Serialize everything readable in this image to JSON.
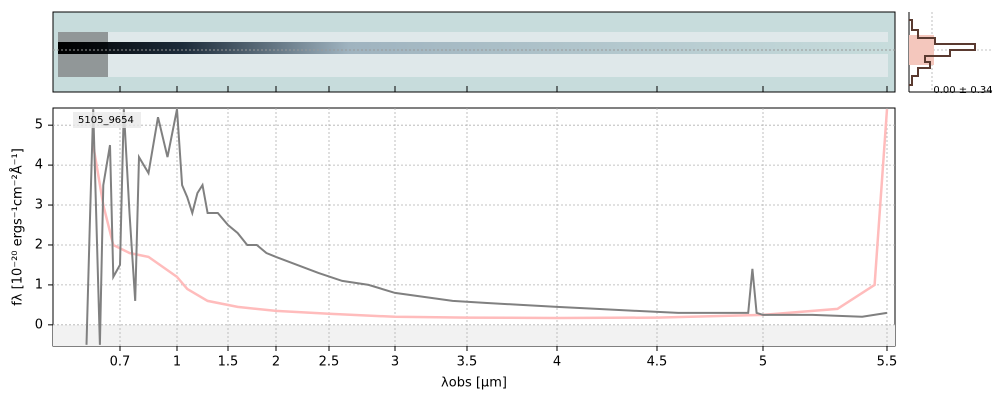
{
  "chart_data": {
    "type": "line",
    "x_label": "λobs [μm]",
    "y_label": "fλ [10⁻²⁰ ergs⁻¹cm⁻²Å⁻¹]",
    "annotation": "5105_9654",
    "side_annotation": "0.00 ± 0.34",
    "xlim": [
      0.5,
      5.53
    ],
    "ylim": [
      -0.53,
      5.43
    ],
    "xticks": [
      0.7,
      1.0,
      1.5,
      2.0,
      2.5,
      3.0,
      3.5,
      4.0,
      4.5,
      5.0,
      5.5
    ],
    "yticks": [
      0,
      1,
      2,
      3,
      4,
      5
    ],
    "grid": true,
    "series": [
      {
        "name": "flux",
        "color": "#808080",
        "x": [
          0.6,
          0.61,
          0.62,
          0.64,
          0.65,
          0.67,
          0.68,
          0.7,
          0.72,
          0.75,
          0.78,
          0.8,
          0.85,
          0.9,
          0.95,
          1.0,
          1.05,
          1.1,
          1.15,
          1.2,
          1.25,
          1.3,
          1.4,
          1.5,
          1.6,
          1.7,
          1.8,
          1.9,
          2.0,
          2.2,
          2.4,
          2.6,
          2.8,
          3.0,
          3.2,
          3.4,
          3.6,
          3.8,
          4.0,
          4.2,
          4.4,
          4.6,
          4.8,
          4.93,
          4.95,
          4.97,
          5.0,
          5.2,
          5.4,
          5.5
        ],
        "values": [
          -0.5,
          2.5,
          5.4,
          -0.5,
          3.5,
          4.5,
          1.2,
          1.5,
          5.4,
          2.8,
          0.6,
          4.2,
          3.8,
          5.2,
          4.2,
          5.4,
          3.5,
          3.2,
          2.8,
          3.3,
          3.5,
          2.8,
          2.8,
          2.5,
          2.3,
          2.0,
          2.0,
          1.8,
          1.7,
          1.5,
          1.3,
          1.1,
          1.0,
          0.8,
          0.7,
          0.6,
          0.55,
          0.5,
          0.45,
          0.4,
          0.35,
          0.3,
          0.3,
          0.3,
          1.4,
          0.3,
          0.25,
          0.25,
          0.2,
          0.3
        ]
      },
      {
        "name": "error",
        "color": "#ffbcbc",
        "x": [
          0.62,
          0.65,
          0.68,
          0.75,
          0.85,
          1.0,
          1.1,
          1.3,
          1.6,
          2.0,
          2.5,
          3.0,
          3.5,
          4.0,
          4.5,
          5.0,
          5.3,
          5.45,
          5.5
        ],
        "values": [
          4.5,
          3.0,
          2.0,
          1.8,
          1.7,
          1.2,
          0.9,
          0.6,
          0.45,
          0.35,
          0.28,
          0.2,
          0.18,
          0.17,
          0.18,
          0.25,
          0.4,
          1.0,
          5.4
        ]
      }
    ]
  }
}
